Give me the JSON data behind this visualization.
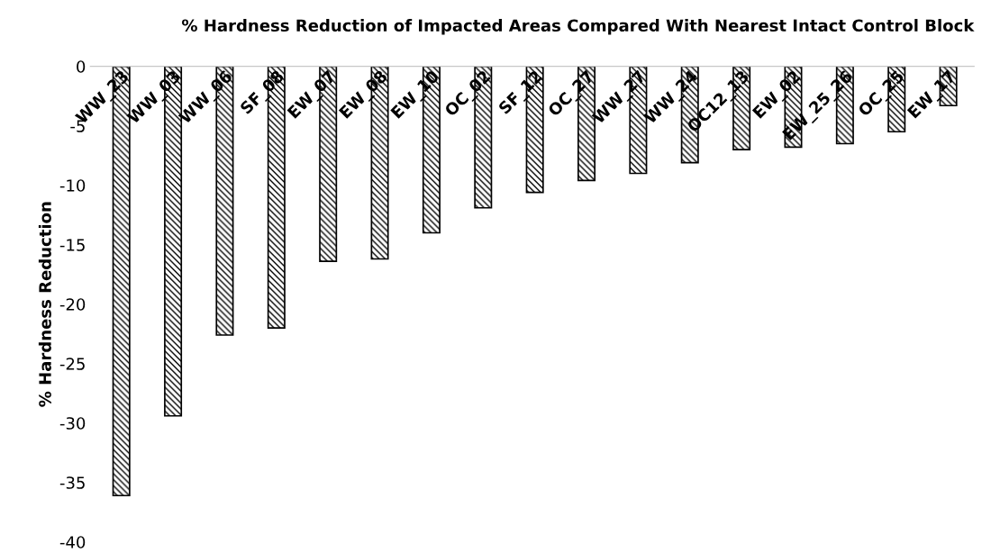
{
  "chart_data": {
    "type": "bar",
    "title": "% Hardness Reduction of Impacted Areas Compared With Nearest Intact Control Block",
    "ylabel": "% Hardness Reduction",
    "categories": [
      "WW_23",
      "WW_03",
      "WW_06",
      "SF_08",
      "EW_07",
      "EW_08",
      "EW_10",
      "OC_02",
      "SF_12",
      "OC_27",
      "WW_27",
      "WW_24",
      "OC12_13",
      "EW_02",
      "EW_25_26",
      "OC_25",
      "EW_17"
    ],
    "values": [
      -36.1,
      -29.4,
      -22.6,
      -22.0,
      -16.4,
      -16.2,
      -14.0,
      -11.9,
      -10.6,
      -9.6,
      -9.0,
      -8.1,
      -7.0,
      -6.8,
      -6.5,
      -5.5,
      -3.3
    ],
    "color": "#000000",
    "ylim": [
      -40,
      0
    ],
    "yticks": [
      -40,
      -35,
      -30,
      -25,
      -20,
      -15,
      -10,
      -5,
      0
    ],
    "grid": false,
    "legend": false
  }
}
